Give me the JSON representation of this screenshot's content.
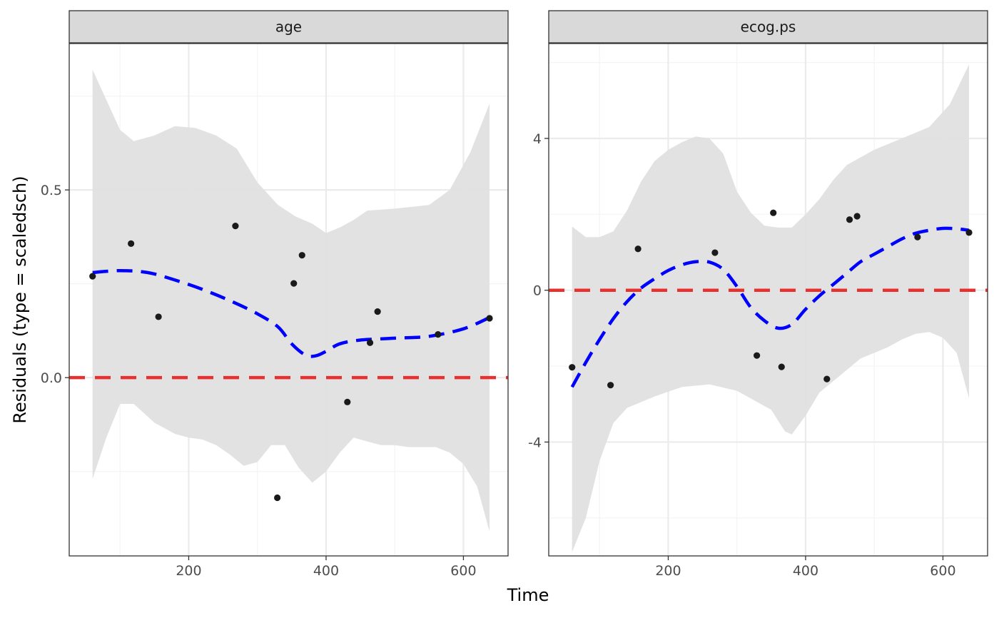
{
  "figure": {
    "xlabel": "Time",
    "ylabel": "Residuals (type = scaledsch)"
  },
  "colors": {
    "strip_fill": "#d9d9d9",
    "grid_major": "#ebebeb",
    "grid_minor": "#f4f4f4",
    "band": "#e0e0e0",
    "smooth": "#0000ff",
    "reference": "#e8302f",
    "point": "#1a1a1a",
    "border": "#333333",
    "tick_text": "#4d4d4d"
  },
  "chart_data": [
    {
      "type": "scatter",
      "panel": "age",
      "xlim": [
        26,
        665
      ],
      "ylim": [
        -0.475,
        0.89
      ],
      "x_ticks": [
        200,
        400,
        600
      ],
      "x_tick_labels": [
        "200",
        "400",
        "600"
      ],
      "y_ticks": [
        0.0,
        0.5
      ],
      "y_tick_labels": [
        "0.0",
        "0.5"
      ],
      "grid": true,
      "points": [
        [
          60,
          0.27
        ],
        [
          116,
          0.357
        ],
        [
          156,
          0.162
        ],
        [
          268,
          0.404
        ],
        [
          329,
          -0.32
        ],
        [
          353,
          0.251
        ],
        [
          365,
          0.326
        ],
        [
          431,
          -0.065
        ],
        [
          464,
          0.093
        ],
        [
          475,
          0.176
        ],
        [
          563,
          0.115
        ],
        [
          638,
          0.158
        ]
      ],
      "smooth": [
        [
          60,
          0.28
        ],
        [
          100,
          0.285
        ],
        [
          140,
          0.28
        ],
        [
          180,
          0.26
        ],
        [
          220,
          0.235
        ],
        [
          260,
          0.205
        ],
        [
          300,
          0.17
        ],
        [
          330,
          0.135
        ],
        [
          350,
          0.09
        ],
        [
          370,
          0.06
        ],
        [
          385,
          0.058
        ],
        [
          400,
          0.07
        ],
        [
          420,
          0.09
        ],
        [
          450,
          0.1
        ],
        [
          500,
          0.105
        ],
        [
          550,
          0.11
        ],
        [
          600,
          0.13
        ],
        [
          638,
          0.16
        ]
      ],
      "band_upper": [
        [
          60,
          0.82
        ],
        [
          80,
          0.74
        ],
        [
          100,
          0.66
        ],
        [
          120,
          0.63
        ],
        [
          150,
          0.645
        ],
        [
          180,
          0.67
        ],
        [
          210,
          0.665
        ],
        [
          240,
          0.645
        ],
        [
          270,
          0.61
        ],
        [
          300,
          0.52
        ],
        [
          330,
          0.46
        ],
        [
          355,
          0.43
        ],
        [
          380,
          0.41
        ],
        [
          400,
          0.385
        ],
        [
          420,
          0.4
        ],
        [
          440,
          0.42
        ],
        [
          460,
          0.445
        ],
        [
          500,
          0.45
        ],
        [
          550,
          0.46
        ],
        [
          580,
          0.5
        ],
        [
          610,
          0.6
        ],
        [
          638,
          0.73
        ]
      ],
      "band_lower": [
        [
          638,
          -0.41
        ],
        [
          620,
          -0.29
        ],
        [
          600,
          -0.23
        ],
        [
          580,
          -0.2
        ],
        [
          560,
          -0.185
        ],
        [
          540,
          -0.185
        ],
        [
          520,
          -0.185
        ],
        [
          500,
          -0.18
        ],
        [
          480,
          -0.18
        ],
        [
          460,
          -0.17
        ],
        [
          440,
          -0.16
        ],
        [
          420,
          -0.2
        ],
        [
          400,
          -0.25
        ],
        [
          380,
          -0.28
        ],
        [
          360,
          -0.24
        ],
        [
          340,
          -0.18
        ],
        [
          320,
          -0.18
        ],
        [
          300,
          -0.225
        ],
        [
          280,
          -0.235
        ],
        [
          260,
          -0.205
        ],
        [
          240,
          -0.18
        ],
        [
          220,
          -0.165
        ],
        [
          200,
          -0.16
        ],
        [
          180,
          -0.15
        ],
        [
          150,
          -0.12
        ],
        [
          120,
          -0.07
        ],
        [
          100,
          -0.07
        ],
        [
          80,
          -0.16
        ],
        [
          60,
          -0.27
        ]
      ],
      "reference_y": 0
    },
    {
      "type": "scatter",
      "panel": "ecog.ps",
      "xlim": [
        26,
        665
      ],
      "ylim": [
        -7.0,
        6.5
      ],
      "x_ticks": [
        200,
        400,
        600
      ],
      "x_tick_labels": [
        "200",
        "400",
        "600"
      ],
      "y_ticks": [
        -4,
        0,
        4
      ],
      "y_tick_labels": [
        "-4",
        "0",
        "4"
      ],
      "grid": true,
      "points": [
        [
          60,
          -2.03
        ],
        [
          116,
          -2.5
        ],
        [
          156,
          1.09
        ],
        [
          268,
          0.99
        ],
        [
          329,
          -1.72
        ],
        [
          353,
          2.04
        ],
        [
          365,
          -2.02
        ],
        [
          431,
          -2.34
        ],
        [
          464,
          1.86
        ],
        [
          475,
          1.95
        ],
        [
          563,
          1.4
        ],
        [
          638,
          1.52
        ]
      ],
      "smooth": [
        [
          60,
          -2.55
        ],
        [
          80,
          -1.9
        ],
        [
          100,
          -1.3
        ],
        [
          120,
          -0.75
        ],
        [
          140,
          -0.3
        ],
        [
          160,
          0.05
        ],
        [
          180,
          0.3
        ],
        [
          200,
          0.52
        ],
        [
          220,
          0.67
        ],
        [
          240,
          0.75
        ],
        [
          260,
          0.74
        ],
        [
          280,
          0.55
        ],
        [
          300,
          0.1
        ],
        [
          320,
          -0.45
        ],
        [
          340,
          -0.8
        ],
        [
          360,
          -1.0
        ],
        [
          380,
          -0.9
        ],
        [
          400,
          -0.5
        ],
        [
          420,
          -0.15
        ],
        [
          440,
          0.15
        ],
        [
          460,
          0.45
        ],
        [
          480,
          0.75
        ],
        [
          500,
          0.95
        ],
        [
          520,
          1.15
        ],
        [
          540,
          1.35
        ],
        [
          560,
          1.5
        ],
        [
          580,
          1.58
        ],
        [
          600,
          1.63
        ],
        [
          620,
          1.62
        ],
        [
          638,
          1.58
        ]
      ],
      "band_upper": [
        [
          60,
          1.68
        ],
        [
          80,
          1.4
        ],
        [
          100,
          1.4
        ],
        [
          120,
          1.55
        ],
        [
          140,
          2.1
        ],
        [
          160,
          2.85
        ],
        [
          180,
          3.4
        ],
        [
          200,
          3.7
        ],
        [
          220,
          3.9
        ],
        [
          240,
          4.05
        ],
        [
          260,
          4.0
        ],
        [
          280,
          3.6
        ],
        [
          300,
          2.6
        ],
        [
          320,
          2.05
        ],
        [
          340,
          1.7
        ],
        [
          360,
          1.65
        ],
        [
          380,
          1.65
        ],
        [
          400,
          2.0
        ],
        [
          420,
          2.4
        ],
        [
          440,
          2.9
        ],
        [
          460,
          3.3
        ],
        [
          500,
          3.7
        ],
        [
          540,
          4.0
        ],
        [
          580,
          4.3
        ],
        [
          610,
          4.9
        ],
        [
          638,
          5.95
        ]
      ],
      "band_lower": [
        [
          638,
          -2.85
        ],
        [
          620,
          -1.65
        ],
        [
          600,
          -1.25
        ],
        [
          580,
          -1.1
        ],
        [
          560,
          -1.15
        ],
        [
          540,
          -1.3
        ],
        [
          520,
          -1.5
        ],
        [
          500,
          -1.65
        ],
        [
          480,
          -1.8
        ],
        [
          460,
          -2.1
        ],
        [
          440,
          -2.4
        ],
        [
          420,
          -2.7
        ],
        [
          400,
          -3.3
        ],
        [
          380,
          -3.8
        ],
        [
          370,
          -3.72
        ],
        [
          350,
          -3.15
        ],
        [
          330,
          -2.95
        ],
        [
          300,
          -2.65
        ],
        [
          260,
          -2.48
        ],
        [
          220,
          -2.55
        ],
        [
          180,
          -2.8
        ],
        [
          160,
          -2.95
        ],
        [
          140,
          -3.1
        ],
        [
          120,
          -3.5
        ],
        [
          100,
          -4.5
        ],
        [
          80,
          -6.0
        ],
        [
          60,
          -6.9
        ]
      ],
      "reference_y": 0
    }
  ]
}
